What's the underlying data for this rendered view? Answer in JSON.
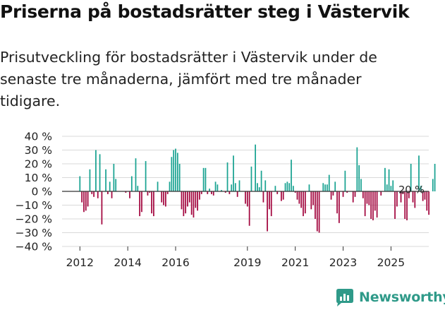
{
  "title": "Priserna på bostadsrätter steg i Västervik",
  "subtitle": "Prisutveckling för bostadsrätter i Västervik under de senaste tre månaderna, jämfört med tre månader tidigare.",
  "brand": {
    "name": "Newsworthy",
    "color": "#2f9a89"
  },
  "colors": {
    "positive": "#1aa392",
    "negative": "#a3073f",
    "grid": "#d9d9d9",
    "axis": "#333333"
  },
  "chart_data": {
    "type": "bar",
    "title": "Priserna på bostadsrätter steg i Västervik",
    "xlabel": "",
    "ylabel": "",
    "ylim": [
      -40,
      40
    ],
    "yticks": [
      40,
      30,
      20,
      10,
      0,
      -10,
      -20,
      -30,
      -40
    ],
    "ytick_labels": [
      "40 %",
      "30 %",
      "20 %",
      "10 %",
      "0 %",
      "−10 %",
      "−20 %",
      "−30 %",
      "−40 %"
    ],
    "xticks": [
      2012,
      2014,
      2016,
      2019,
      2021,
      2023,
      2025
    ],
    "xtick_labels": [
      "2012",
      "2014",
      "2016",
      "2019",
      "2021",
      "2023",
      "2025"
    ],
    "x_start": 2012.0,
    "x_step": 0.0833333,
    "annotation": {
      "text": "20 %",
      "series_index": 167
    },
    "values": [
      11,
      -8,
      -15,
      -14,
      -11,
      16,
      -2,
      -4,
      30,
      -5,
      27,
      -24,
      0,
      16,
      -2,
      7,
      -5,
      20,
      9,
      0,
      0,
      0,
      0,
      -1,
      0,
      -5,
      11,
      0,
      24,
      4,
      -18,
      -15,
      0,
      22,
      -3,
      -1,
      -16,
      -18,
      0,
      7,
      0,
      -8,
      -10,
      -11,
      -2,
      7,
      25,
      30,
      31,
      28,
      20,
      -13,
      -18,
      -16,
      -11,
      -8,
      -17,
      -19,
      -12,
      -14,
      -6,
      -2,
      17,
      17,
      -2,
      2,
      -2,
      -3,
      7,
      5,
      0,
      1,
      0,
      -1,
      21,
      -2,
      5,
      26,
      6,
      -4,
      8,
      0,
      0,
      -9,
      -11,
      -25,
      18,
      0,
      34,
      6,
      3,
      15,
      -8,
      8,
      -29,
      -13,
      -18,
      0,
      4,
      -2,
      0,
      -7,
      -6,
      6,
      7,
      6,
      23,
      4,
      -1,
      -6,
      -9,
      -12,
      -18,
      -16,
      0,
      5,
      -13,
      -10,
      -20,
      -29,
      -30,
      0,
      6,
      5,
      5,
      12,
      -6,
      -3,
      7,
      -16,
      -23,
      0,
      -4,
      15,
      -1,
      0,
      0,
      -8,
      -4,
      32,
      19,
      9,
      -5,
      -18,
      -9,
      -10,
      -20,
      -21,
      -14,
      -19,
      0,
      -3,
      0,
      17,
      5,
      16,
      4,
      8,
      -20,
      -11,
      0,
      -8,
      -2,
      -20,
      -21,
      -5,
      20,
      -8,
      -12,
      0,
      26,
      4,
      -7,
      -6,
      -14,
      -17,
      0,
      9,
      20
    ]
  }
}
